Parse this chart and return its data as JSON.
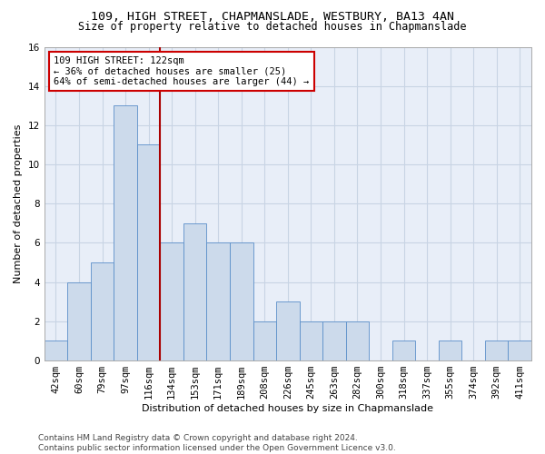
{
  "title1": "109, HIGH STREET, CHAPMANSLADE, WESTBURY, BA13 4AN",
  "title2": "Size of property relative to detached houses in Chapmanslade",
  "xlabel": "Distribution of detached houses by size in Chapmanslade",
  "ylabel": "Number of detached properties",
  "bin_labels": [
    "42sqm",
    "60sqm",
    "79sqm",
    "97sqm",
    "116sqm",
    "134sqm",
    "153sqm",
    "171sqm",
    "189sqm",
    "208sqm",
    "226sqm",
    "245sqm",
    "263sqm",
    "282sqm",
    "300sqm",
    "318sqm",
    "337sqm",
    "355sqm",
    "374sqm",
    "392sqm",
    "411sqm"
  ],
  "bar_values": [
    1,
    4,
    5,
    13,
    11,
    6,
    7,
    6,
    6,
    2,
    3,
    2,
    2,
    2,
    0,
    1,
    0,
    1,
    0,
    1,
    1
  ],
  "bar_color": "#ccdaeb",
  "bar_edge_color": "#5b8fc9",
  "vline_color": "#aa0000",
  "annotation_text": "109 HIGH STREET: 122sqm\n← 36% of detached houses are smaller (25)\n64% of semi-detached houses are larger (44) →",
  "annotation_box_color": "#cc0000",
  "ylim": [
    0,
    16
  ],
  "yticks": [
    0,
    2,
    4,
    6,
    8,
    10,
    12,
    14,
    16
  ],
  "grid_color": "#c8d4e4",
  "background_color": "#e8eef8",
  "footer_text": "Contains HM Land Registry data © Crown copyright and database right 2024.\nContains public sector information licensed under the Open Government Licence v3.0.",
  "title1_fontsize": 9.5,
  "title2_fontsize": 8.5,
  "xlabel_fontsize": 8,
  "ylabel_fontsize": 8,
  "tick_fontsize": 7.5,
  "annotation_fontsize": 7.5,
  "footer_fontsize": 6.5
}
